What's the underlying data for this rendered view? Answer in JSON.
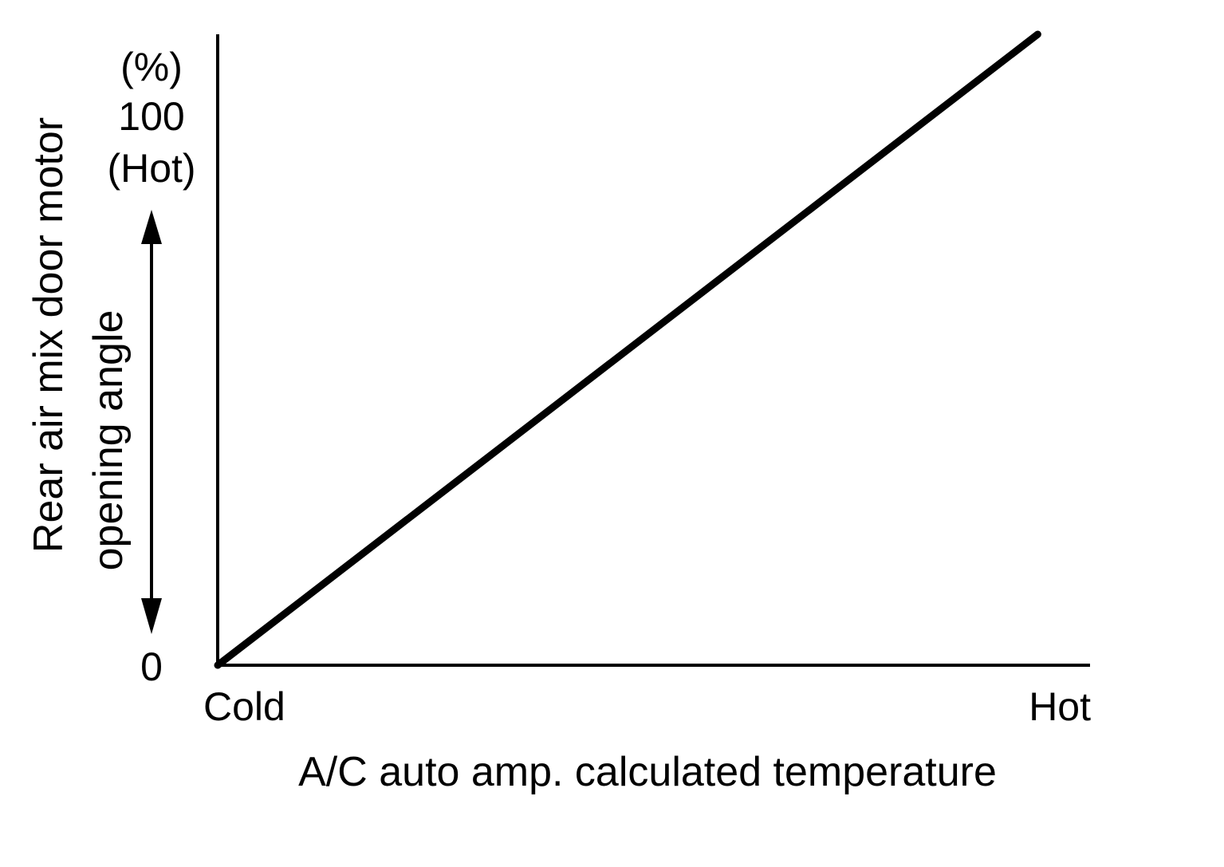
{
  "chart_data": {
    "type": "line",
    "xlabel": "A/C auto amp. calculated temperature",
    "ylabel": [
      "Rear air mix door motor",
      "opening angle"
    ],
    "x_tick_labels": [
      "Cold",
      "Hot"
    ],
    "y_unit": "(%)",
    "y_tick_labels": [
      "100",
      "(Hot)",
      "0"
    ],
    "xlim": [
      0,
      100
    ],
    "ylim": [
      0,
      100
    ],
    "series": [
      {
        "x": [
          0,
          94
        ],
        "y": [
          0,
          100
        ]
      }
    ],
    "grid": false,
    "legend": false
  },
  "colors": {
    "line": "#000000",
    "axis": "#000000",
    "background": "#ffffff"
  }
}
